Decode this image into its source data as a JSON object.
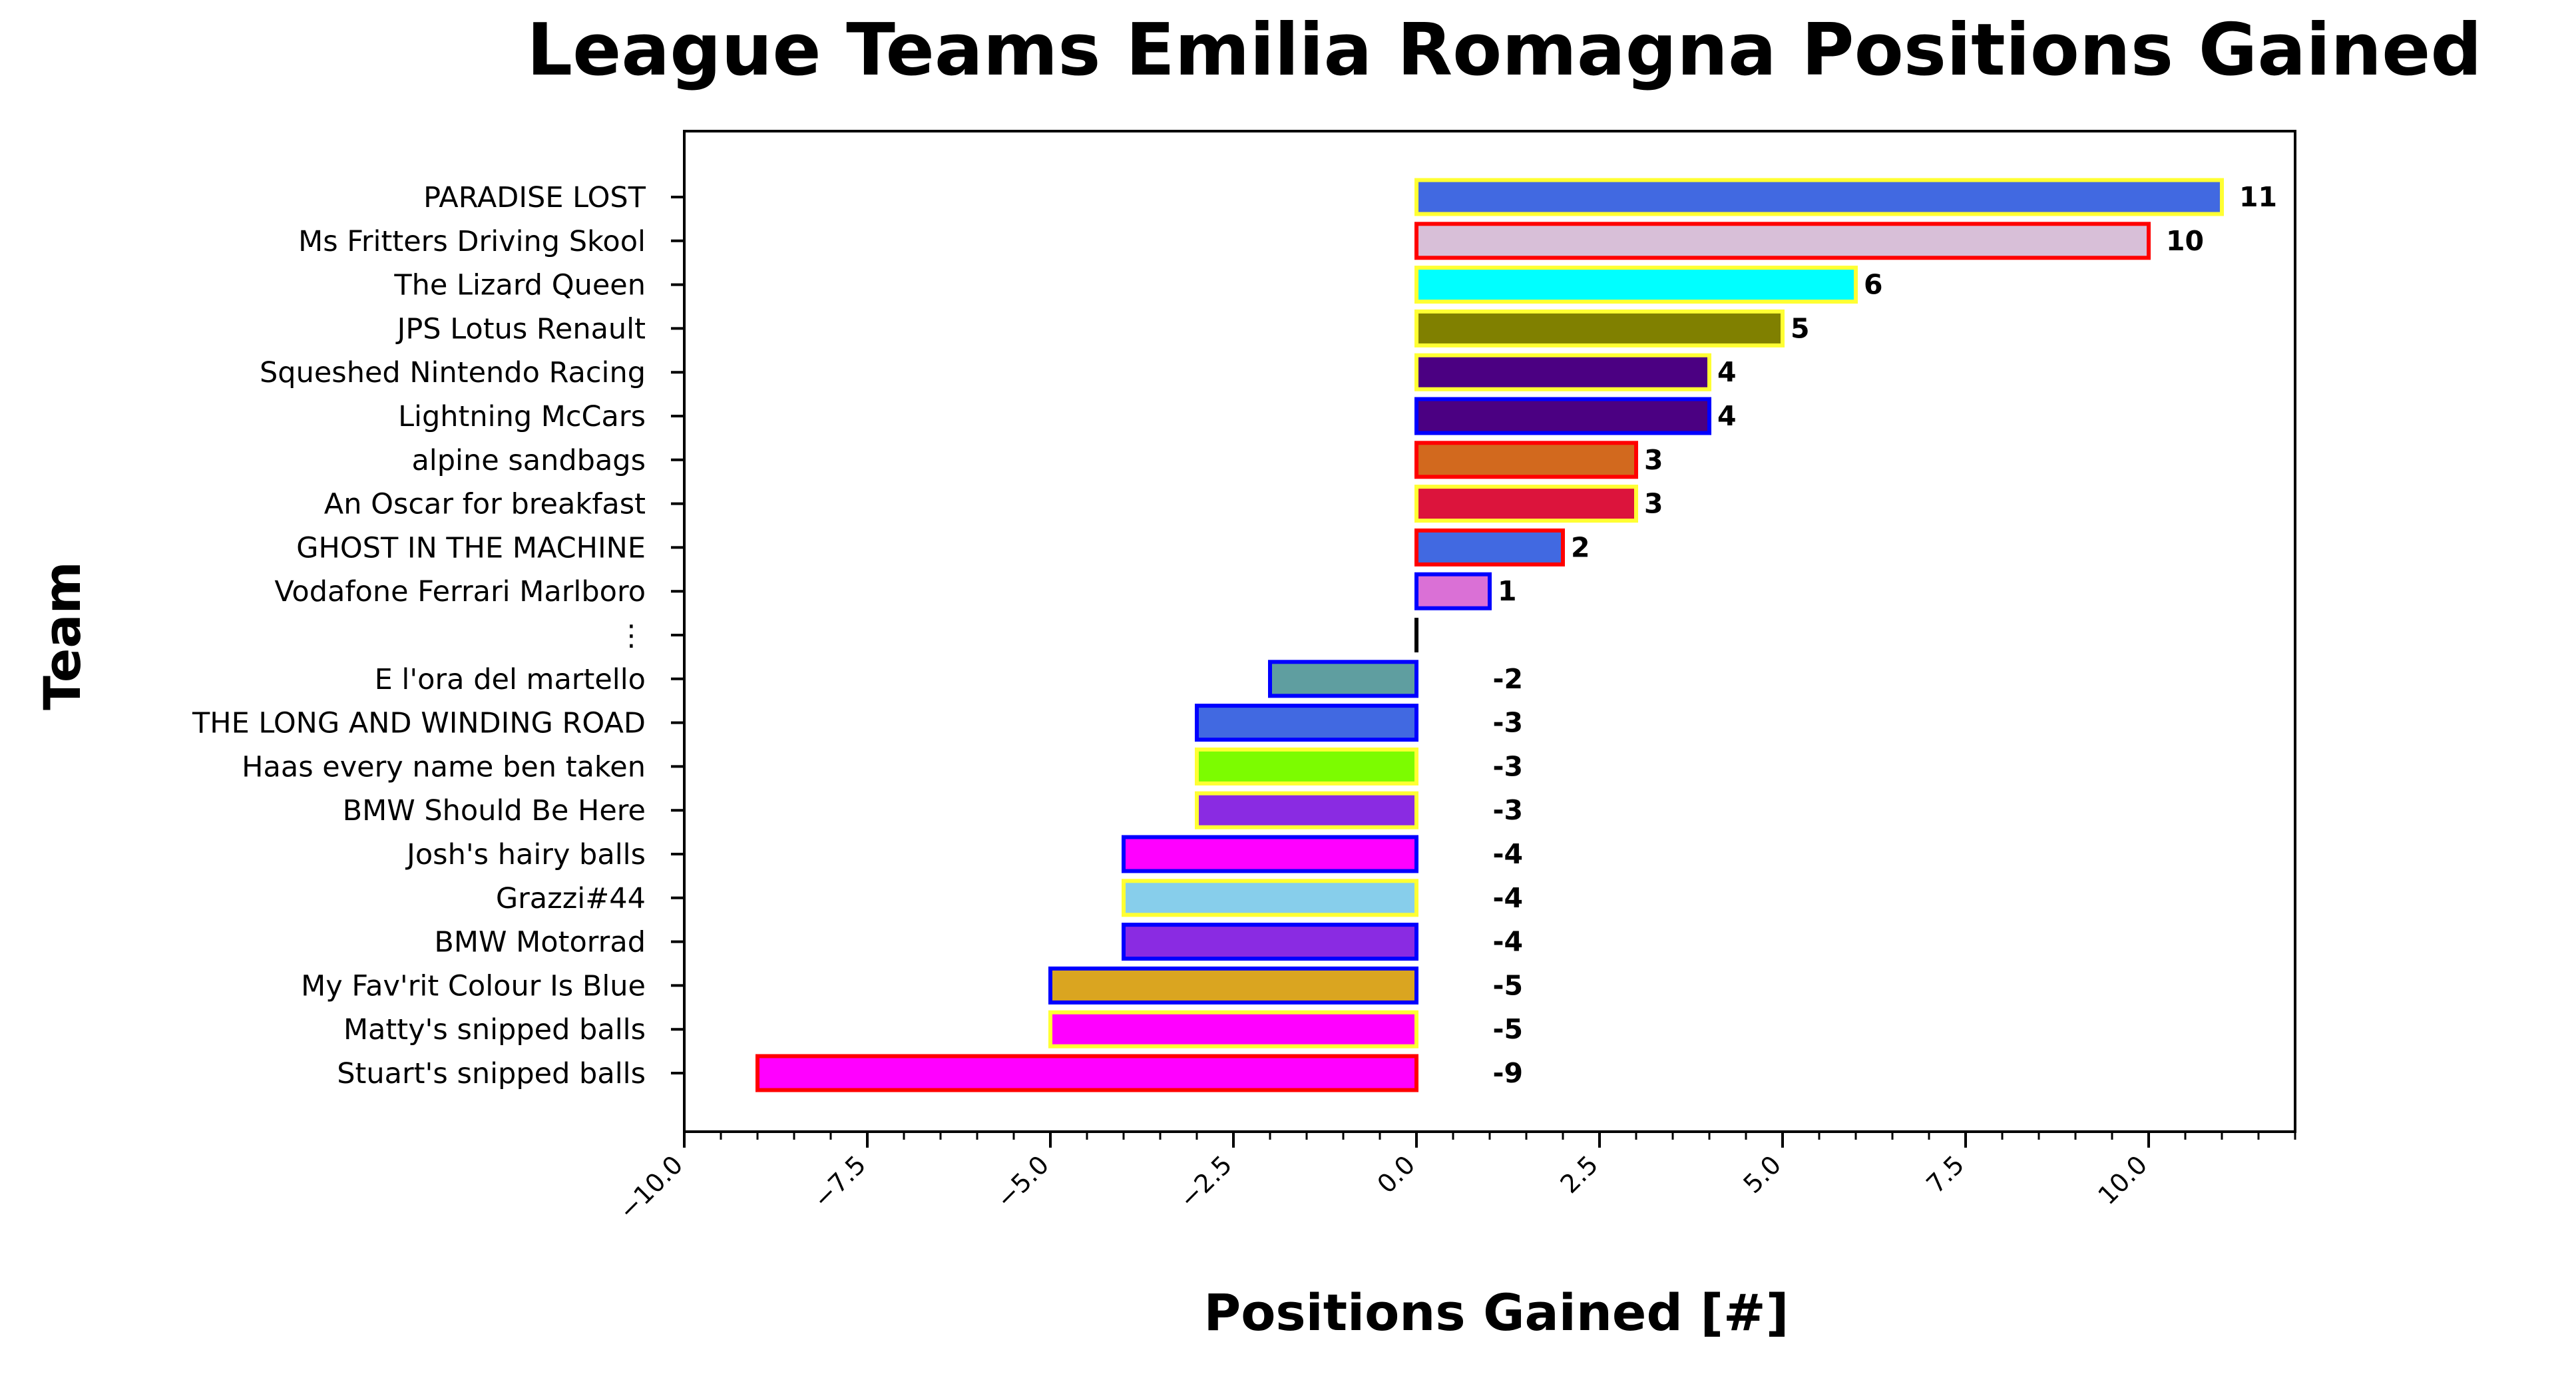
{
  "chart_data": {
    "type": "bar",
    "orientation": "horizontal",
    "title": "League Teams Emilia Romagna Positions Gained",
    "xlabel": "Positions Gained [#]",
    "ylabel": "Team",
    "xlim": [
      -10,
      12
    ],
    "xticks": [
      "−10.0",
      "−7.5",
      "−5.0",
      "−2.5",
      "0.0",
      "2.5",
      "5.0",
      "7.5",
      "10.0"
    ],
    "xtick_values": [
      -10,
      -7.5,
      -5,
      -2.5,
      0,
      2.5,
      5,
      7.5,
      10
    ],
    "grid": false,
    "bars": [
      {
        "team": "PARADISE LOST",
        "value": 11,
        "label": "11",
        "fill": "#4169E1",
        "edge": "#FFFF33"
      },
      {
        "team": "Ms Fritters Driving Skool",
        "value": 10,
        "label": "10",
        "fill": "#D8BFD8",
        "edge": "#FF0000"
      },
      {
        "team": "The Lizard Queen",
        "value": 6,
        "label": "6",
        "fill": "#00FFFF",
        "edge": "#FFFF33"
      },
      {
        "team": "JPS Lotus Renault",
        "value": 5,
        "label": "5",
        "fill": "#808000",
        "edge": "#FFFF33"
      },
      {
        "team": "Squeshed Nintendo Racing",
        "value": 4,
        "label": "4",
        "fill": "#4B0082",
        "edge": "#FFFF33"
      },
      {
        "team": "Lightning McCars",
        "value": 4,
        "label": "4",
        "fill": "#4B0082",
        "edge": "#0000FF"
      },
      {
        "team": "alpine sandbags",
        "value": 3,
        "label": "3",
        "fill": "#D2691E",
        "edge": "#FF0000"
      },
      {
        "team": "An Oscar for breakfast",
        "value": 3,
        "label": "3",
        "fill": "#DC143C",
        "edge": "#FFFF33"
      },
      {
        "team": "GHOST IN THE MACHINE",
        "value": 2,
        "label": "2",
        "fill": "#4169E1",
        "edge": "#FF0000"
      },
      {
        "team": "Vodafone Ferrari Marlboro",
        "value": 1,
        "label": "1",
        "fill": "#DA70D6",
        "edge": "#0000FF"
      },
      {
        "team": "⋮",
        "value": 0,
        "label": "",
        "fill": "#000000",
        "edge": "#000000",
        "separator": true
      },
      {
        "team": "E l'ora del martello",
        "value": -2,
        "label": "-2",
        "fill": "#5F9EA0",
        "edge": "#0000FF"
      },
      {
        "team": "THE LONG AND WINDING ROAD",
        "value": -3,
        "label": "-3",
        "fill": "#4169E1",
        "edge": "#0000FF"
      },
      {
        "team": "Haas every name ben taken",
        "value": -3,
        "label": "-3",
        "fill": "#7CFC00",
        "edge": "#FFFF33"
      },
      {
        "team": "BMW Should Be Here",
        "value": -3,
        "label": "-3",
        "fill": "#8A2BE2",
        "edge": "#FFFF33"
      },
      {
        "team": "Josh's hairy balls",
        "value": -4,
        "label": "-4",
        "fill": "#FF00FF",
        "edge": "#0000FF"
      },
      {
        "team": "Grazzi#44",
        "value": -4,
        "label": "-4",
        "fill": "#87CEEB",
        "edge": "#FFFF33"
      },
      {
        "team": "BMW Motorrad",
        "value": -4,
        "label": "-4",
        "fill": "#8A2BE2",
        "edge": "#0000FF"
      },
      {
        "team": "My Fav'rit Colour Is Blue",
        "value": -5,
        "label": "-5",
        "fill": "#DAA520",
        "edge": "#0000FF"
      },
      {
        "team": "Matty's snipped balls",
        "value": -5,
        "label": "-5",
        "fill": "#FF00FF",
        "edge": "#FFFF33"
      },
      {
        "team": "Stuart's snipped balls",
        "value": -9,
        "label": "-9",
        "fill": "#FF00FF",
        "edge": "#FF0000"
      }
    ]
  }
}
